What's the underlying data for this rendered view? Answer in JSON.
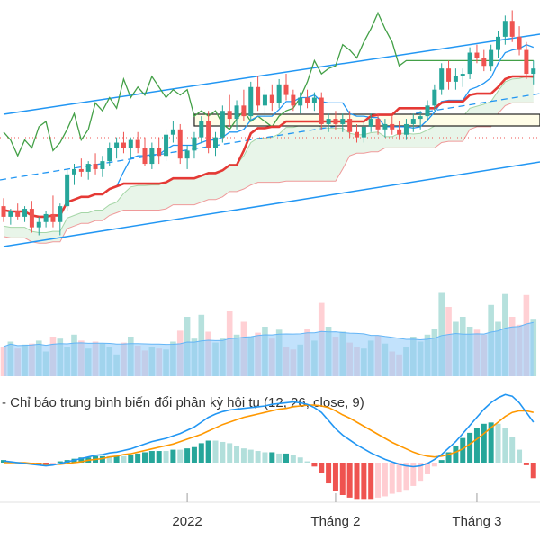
{
  "colors": {
    "up": "#26a69a",
    "down": "#ef5350",
    "channel": "#2196f3",
    "lagging": "#43a047",
    "base_line": "#e53935",
    "conversion_line": "#2196f3",
    "cloud_fill": "#e8f5e9",
    "kumo_edge_green": "#a5d6a7",
    "kumo_edge_red": "#ef9a9a",
    "volume_ma": "#90caf9",
    "macd_line": "#2196f3",
    "signal_line": "#ff9800",
    "hist_up_strong": "#26a69a",
    "hist_up_weak": "#b2dfdb",
    "hist_down_strong": "#ef5350",
    "hist_down_weak": "#ffcdd2",
    "reference_line": "#ef5350",
    "range_box_fill": "#fffde7"
  },
  "macd_panel": {
    "title": "- Chỉ báo trung bình biến đổi phân kỳ hội tụ (12, 26, close, 9)"
  },
  "x_axis": {
    "ticks": [
      {
        "label": "2022",
        "index": 26
      },
      {
        "label": "Tháng 2",
        "index": 47
      },
      {
        "label": "Tháng 3",
        "index": 67
      }
    ]
  },
  "chart_data": {
    "type": "candlestick",
    "series_count": 76,
    "candles": [
      {
        "o": 0.44,
        "h": 0.47,
        "l": 0.38,
        "c": 0.4
      },
      {
        "o": 0.4,
        "h": 0.43,
        "l": 0.37,
        "c": 0.42
      },
      {
        "o": 0.42,
        "h": 0.45,
        "l": 0.39,
        "c": 0.4
      },
      {
        "o": 0.4,
        "h": 0.44,
        "l": 0.38,
        "c": 0.43
      },
      {
        "o": 0.43,
        "h": 0.46,
        "l": 0.34,
        "c": 0.36
      },
      {
        "o": 0.36,
        "h": 0.4,
        "l": 0.33,
        "c": 0.38
      },
      {
        "o": 0.38,
        "h": 0.42,
        "l": 0.36,
        "c": 0.41
      },
      {
        "o": 0.41,
        "h": 0.48,
        "l": 0.36,
        "c": 0.38
      },
      {
        "o": 0.38,
        "h": 0.45,
        "l": 0.33,
        "c": 0.44
      },
      {
        "o": 0.44,
        "h": 0.58,
        "l": 0.42,
        "c": 0.56
      },
      {
        "o": 0.56,
        "h": 0.6,
        "l": 0.52,
        "c": 0.58
      },
      {
        "o": 0.58,
        "h": 0.62,
        "l": 0.55,
        "c": 0.57
      },
      {
        "o": 0.57,
        "h": 0.61,
        "l": 0.54,
        "c": 0.6
      },
      {
        "o": 0.6,
        "h": 0.64,
        "l": 0.56,
        "c": 0.58
      },
      {
        "o": 0.58,
        "h": 0.63,
        "l": 0.55,
        "c": 0.61
      },
      {
        "o": 0.61,
        "h": 0.68,
        "l": 0.59,
        "c": 0.66
      },
      {
        "o": 0.66,
        "h": 0.7,
        "l": 0.62,
        "c": 0.68
      },
      {
        "o": 0.68,
        "h": 0.72,
        "l": 0.64,
        "c": 0.66
      },
      {
        "o": 0.66,
        "h": 0.7,
        "l": 0.62,
        "c": 0.69
      },
      {
        "o": 0.69,
        "h": 0.72,
        "l": 0.64,
        "c": 0.66
      },
      {
        "o": 0.66,
        "h": 0.7,
        "l": 0.59,
        "c": 0.6
      },
      {
        "o": 0.6,
        "h": 0.68,
        "l": 0.58,
        "c": 0.66
      },
      {
        "o": 0.66,
        "h": 0.7,
        "l": 0.6,
        "c": 0.63
      },
      {
        "o": 0.63,
        "h": 0.73,
        "l": 0.61,
        "c": 0.71
      },
      {
        "o": 0.71,
        "h": 0.76,
        "l": 0.68,
        "c": 0.73
      },
      {
        "o": 0.73,
        "h": 0.75,
        "l": 0.6,
        "c": 0.62
      },
      {
        "o": 0.62,
        "h": 0.67,
        "l": 0.58,
        "c": 0.65
      },
      {
        "o": 0.65,
        "h": 0.72,
        "l": 0.62,
        "c": 0.7
      },
      {
        "o": 0.7,
        "h": 0.78,
        "l": 0.68,
        "c": 0.76
      },
      {
        "o": 0.76,
        "h": 0.8,
        "l": 0.64,
        "c": 0.66
      },
      {
        "o": 0.66,
        "h": 0.72,
        "l": 0.63,
        "c": 0.7
      },
      {
        "o": 0.7,
        "h": 0.82,
        "l": 0.68,
        "c": 0.8
      },
      {
        "o": 0.8,
        "h": 0.86,
        "l": 0.74,
        "c": 0.77
      },
      {
        "o": 0.77,
        "h": 0.84,
        "l": 0.73,
        "c": 0.82
      },
      {
        "o": 0.82,
        "h": 0.88,
        "l": 0.76,
        "c": 0.78
      },
      {
        "o": 0.78,
        "h": 0.91,
        "l": 0.76,
        "c": 0.89
      },
      {
        "o": 0.89,
        "h": 0.93,
        "l": 0.8,
        "c": 0.82
      },
      {
        "o": 0.82,
        "h": 0.88,
        "l": 0.78,
        "c": 0.86
      },
      {
        "o": 0.86,
        "h": 0.9,
        "l": 0.8,
        "c": 0.83
      },
      {
        "o": 0.83,
        "h": 0.92,
        "l": 0.81,
        "c": 0.9
      },
      {
        "o": 0.9,
        "h": 0.94,
        "l": 0.84,
        "c": 0.86
      },
      {
        "o": 0.86,
        "h": 0.88,
        "l": 0.8,
        "c": 0.82
      },
      {
        "o": 0.82,
        "h": 0.87,
        "l": 0.79,
        "c": 0.85
      },
      {
        "o": 0.85,
        "h": 0.88,
        "l": 0.81,
        "c": 0.83
      },
      {
        "o": 0.83,
        "h": 0.87,
        "l": 0.8,
        "c": 0.85
      },
      {
        "o": 0.85,
        "h": 0.87,
        "l": 0.73,
        "c": 0.75
      },
      {
        "o": 0.75,
        "h": 0.79,
        "l": 0.72,
        "c": 0.77
      },
      {
        "o": 0.77,
        "h": 0.8,
        "l": 0.73,
        "c": 0.75
      },
      {
        "o": 0.75,
        "h": 0.79,
        "l": 0.72,
        "c": 0.77
      },
      {
        "o": 0.77,
        "h": 0.8,
        "l": 0.7,
        "c": 0.72
      },
      {
        "o": 0.72,
        "h": 0.75,
        "l": 0.68,
        "c": 0.7
      },
      {
        "o": 0.7,
        "h": 0.76,
        "l": 0.68,
        "c": 0.74
      },
      {
        "o": 0.74,
        "h": 0.79,
        "l": 0.72,
        "c": 0.77
      },
      {
        "o": 0.77,
        "h": 0.79,
        "l": 0.71,
        "c": 0.73
      },
      {
        "o": 0.73,
        "h": 0.77,
        "l": 0.7,
        "c": 0.75
      },
      {
        "o": 0.75,
        "h": 0.78,
        "l": 0.71,
        "c": 0.73
      },
      {
        "o": 0.73,
        "h": 0.76,
        "l": 0.69,
        "c": 0.71
      },
      {
        "o": 0.71,
        "h": 0.77,
        "l": 0.69,
        "c": 0.75
      },
      {
        "o": 0.75,
        "h": 0.79,
        "l": 0.72,
        "c": 0.77
      },
      {
        "o": 0.77,
        "h": 0.8,
        "l": 0.73,
        "c": 0.78
      },
      {
        "o": 0.78,
        "h": 0.84,
        "l": 0.76,
        "c": 0.82
      },
      {
        "o": 0.82,
        "h": 0.9,
        "l": 0.8,
        "c": 0.88
      },
      {
        "o": 0.88,
        "h": 0.98,
        "l": 0.86,
        "c": 0.96
      },
      {
        "o": 0.96,
        "h": 0.99,
        "l": 0.88,
        "c": 0.91
      },
      {
        "o": 0.91,
        "h": 0.96,
        "l": 0.88,
        "c": 0.93
      },
      {
        "o": 0.93,
        "h": 0.96,
        "l": 0.89,
        "c": 0.94
      },
      {
        "o": 0.94,
        "h": 1.04,
        "l": 0.92,
        "c": 1.02
      },
      {
        "o": 1.02,
        "h": 1.05,
        "l": 0.98,
        "c": 1.0
      },
      {
        "o": 1.0,
        "h": 1.03,
        "l": 0.95,
        "c": 0.97
      },
      {
        "o": 0.97,
        "h": 1.05,
        "l": 0.95,
        "c": 1.03
      },
      {
        "o": 1.03,
        "h": 1.1,
        "l": 1.0,
        "c": 1.08
      },
      {
        "o": 1.08,
        "h": 1.16,
        "l": 1.05,
        "c": 1.14
      },
      {
        "o": 1.14,
        "h": 1.18,
        "l": 1.06,
        "c": 1.08
      },
      {
        "o": 1.08,
        "h": 1.12,
        "l": 1.01,
        "c": 1.03
      },
      {
        "o": 1.03,
        "h": 1.06,
        "l": 0.92,
        "c": 0.94
      },
      {
        "o": 0.94,
        "h": 0.99,
        "l": 0.9,
        "c": 0.96
      }
    ],
    "volumes": [
      0.3,
      0.35,
      0.28,
      0.32,
      0.33,
      0.36,
      0.25,
      0.4,
      0.38,
      0.3,
      0.42,
      0.36,
      0.28,
      0.35,
      0.33,
      0.3,
      0.22,
      0.34,
      0.4,
      0.31,
      0.26,
      0.3,
      0.28,
      0.27,
      0.35,
      0.46,
      0.6,
      0.38,
      0.62,
      0.45,
      0.34,
      0.38,
      0.66,
      0.42,
      0.55,
      0.4,
      0.44,
      0.5,
      0.38,
      0.47,
      0.3,
      0.27,
      0.32,
      0.48,
      0.36,
      0.74,
      0.5,
      0.4,
      0.45,
      0.34,
      0.3,
      0.28,
      0.36,
      0.41,
      0.33,
      0.25,
      0.22,
      0.3,
      0.4,
      0.35,
      0.42,
      0.48,
      0.85,
      0.7,
      0.55,
      0.6,
      0.5,
      0.47,
      0.42,
      0.72,
      0.55,
      0.83,
      0.6,
      0.52,
      0.82,
      0.58
    ],
    "macd": [
      0.02,
      0.01,
      0.0,
      -0.01,
      -0.02,
      -0.03,
      -0.04,
      -0.03,
      -0.01,
      0.01,
      0.03,
      0.05,
      0.07,
      0.09,
      0.1,
      0.12,
      0.13,
      0.15,
      0.17,
      0.2,
      0.23,
      0.26,
      0.28,
      0.3,
      0.33,
      0.36,
      0.4,
      0.44,
      0.5,
      0.56,
      0.6,
      0.63,
      0.65,
      0.66,
      0.67,
      0.68,
      0.69,
      0.7,
      0.72,
      0.73,
      0.74,
      0.75,
      0.74,
      0.72,
      0.68,
      0.62,
      0.52,
      0.42,
      0.34,
      0.28,
      0.22,
      0.17,
      0.12,
      0.08,
      0.04,
      0.01,
      -0.02,
      -0.04,
      -0.05,
      -0.04,
      -0.01,
      0.04,
      0.1,
      0.18,
      0.26,
      0.36,
      0.46,
      0.56,
      0.66,
      0.74,
      0.8,
      0.84,
      0.82,
      0.74,
      0.62,
      0.5
    ],
    "signal": [
      0.0,
      0.0,
      0.0,
      0.0,
      -0.01,
      -0.01,
      -0.02,
      -0.02,
      -0.02,
      -0.01,
      0.0,
      0.01,
      0.03,
      0.04,
      0.05,
      0.07,
      0.08,
      0.1,
      0.11,
      0.13,
      0.15,
      0.17,
      0.19,
      0.21,
      0.23,
      0.26,
      0.29,
      0.32,
      0.35,
      0.39,
      0.43,
      0.47,
      0.5,
      0.53,
      0.56,
      0.58,
      0.6,
      0.62,
      0.64,
      0.66,
      0.67,
      0.69,
      0.7,
      0.71,
      0.71,
      0.7,
      0.68,
      0.64,
      0.59,
      0.55,
      0.5,
      0.45,
      0.4,
      0.35,
      0.3,
      0.25,
      0.21,
      0.17,
      0.13,
      0.1,
      0.08,
      0.07,
      0.08,
      0.1,
      0.13,
      0.17,
      0.23,
      0.29,
      0.36,
      0.43,
      0.5,
      0.57,
      0.62,
      0.64,
      0.64,
      0.62
    ]
  }
}
